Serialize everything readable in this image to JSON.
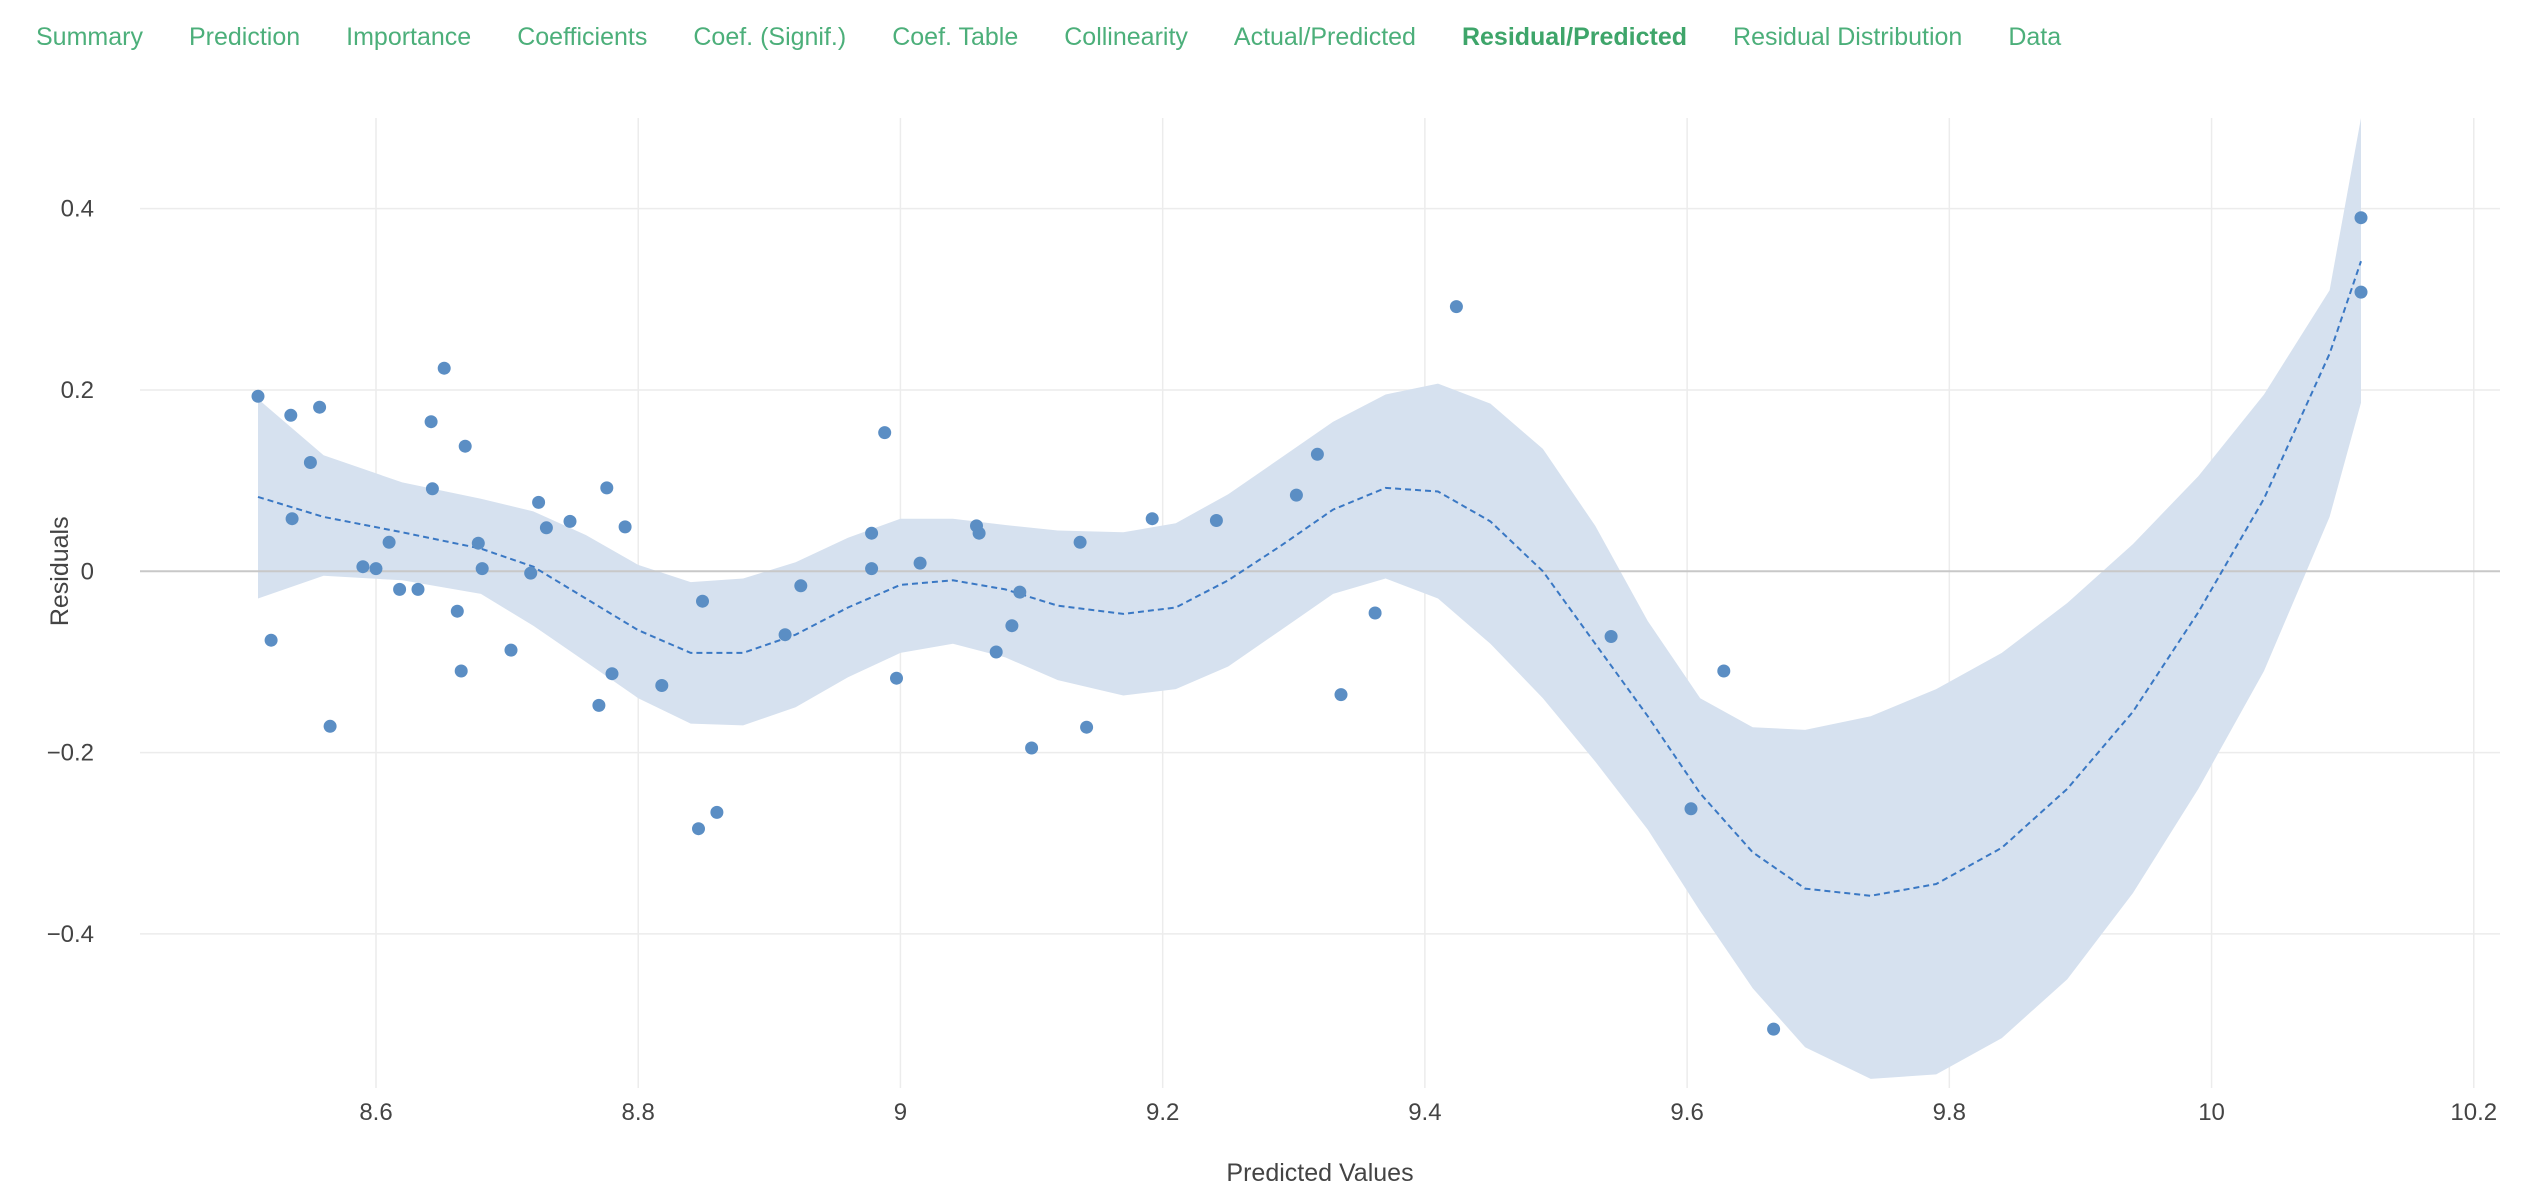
{
  "tabs": [
    {
      "label": "Summary",
      "active": false
    },
    {
      "label": "Prediction",
      "active": false
    },
    {
      "label": "Importance",
      "active": false
    },
    {
      "label": "Coefficients",
      "active": false
    },
    {
      "label": "Coef. (Signif.)",
      "active": false
    },
    {
      "label": "Coef. Table",
      "active": false
    },
    {
      "label": "Collinearity",
      "active": false
    },
    {
      "label": "Actual/Predicted",
      "active": false
    },
    {
      "label": "Residual/Predicted",
      "active": true
    },
    {
      "label": "Residual Distribution",
      "active": false
    },
    {
      "label": "Data",
      "active": false
    }
  ],
  "colors": {
    "tab_text": "#4caf7a",
    "points": "#5b8ec4",
    "band": "#d6e1ef",
    "smooth_line": "#3a78c4",
    "zero_line": "#c8c8c8",
    "grid": "#ececec"
  },
  "chart_data": {
    "type": "scatter",
    "title": "",
    "xlabel": "Predicted Values",
    "ylabel": "Residuals",
    "xlim": [
      8.42,
      10.22
    ],
    "ylim": [
      -0.57,
      0.5
    ],
    "xticks": [
      8.6,
      8.8,
      9,
      9.2,
      9.4,
      9.6,
      9.8,
      10,
      10.2
    ],
    "xtick_labels": [
      "8.6",
      "8.8",
      "9",
      "9.2",
      "9.4",
      "9.6",
      "9.8",
      "10",
      "10.2"
    ],
    "yticks": [
      0.4,
      0.2,
      0,
      -0.2,
      -0.4
    ],
    "ytick_labels": [
      "0.4",
      "0.2",
      "0",
      "−0.2",
      "−0.4"
    ],
    "grid": true,
    "points": [
      [
        8.51,
        0.193
      ],
      [
        8.52,
        -0.076
      ],
      [
        8.535,
        0.172
      ],
      [
        8.536,
        0.058
      ],
      [
        8.55,
        0.12
      ],
      [
        8.557,
        0.181
      ],
      [
        8.565,
        -0.171
      ],
      [
        8.59,
        0.005
      ],
      [
        8.6,
        0.003
      ],
      [
        8.61,
        0.032
      ],
      [
        8.618,
        -0.02
      ],
      [
        8.632,
        -0.02
      ],
      [
        8.642,
        0.165
      ],
      [
        8.643,
        0.091
      ],
      [
        8.652,
        0.224
      ],
      [
        8.662,
        -0.044
      ],
      [
        8.665,
        -0.11
      ],
      [
        8.668,
        0.138
      ],
      [
        8.678,
        0.031
      ],
      [
        8.681,
        0.003
      ],
      [
        8.703,
        -0.087
      ],
      [
        8.718,
        -0.002
      ],
      [
        8.724,
        0.076
      ],
      [
        8.73,
        0.048
      ],
      [
        8.748,
        0.055
      ],
      [
        8.77,
        -0.148
      ],
      [
        8.776,
        0.092
      ],
      [
        8.78,
        -0.113
      ],
      [
        8.79,
        0.049
      ],
      [
        8.818,
        -0.126
      ],
      [
        8.846,
        -0.284
      ],
      [
        8.849,
        -0.033
      ],
      [
        8.86,
        -0.266
      ],
      [
        8.912,
        -0.07
      ],
      [
        8.924,
        -0.016
      ],
      [
        8.978,
        0.042
      ],
      [
        8.978,
        0.003
      ],
      [
        8.988,
        0.153
      ],
      [
        8.997,
        -0.118
      ],
      [
        9.015,
        0.009
      ],
      [
        9.058,
        0.05
      ],
      [
        9.06,
        0.042
      ],
      [
        9.073,
        -0.089
      ],
      [
        9.085,
        -0.06
      ],
      [
        9.091,
        -0.023
      ],
      [
        9.1,
        -0.195
      ],
      [
        9.137,
        0.032
      ],
      [
        9.142,
        -0.172
      ],
      [
        9.192,
        0.058
      ],
      [
        9.241,
        0.056
      ],
      [
        9.302,
        0.084
      ],
      [
        9.318,
        0.129
      ],
      [
        9.336,
        -0.136
      ],
      [
        9.362,
        -0.046
      ],
      [
        9.424,
        0.292
      ],
      [
        9.542,
        -0.072
      ],
      [
        9.603,
        -0.262
      ],
      [
        9.628,
        -0.11
      ],
      [
        9.666,
        -0.505
      ],
      [
        10.114,
        0.39
      ],
      [
        10.114,
        0.308
      ]
    ],
    "smooth": {
      "x": [
        8.51,
        8.56,
        8.62,
        8.68,
        8.72,
        8.76,
        8.8,
        8.84,
        8.88,
        8.92,
        8.96,
        9.0,
        9.04,
        9.08,
        9.12,
        9.17,
        9.21,
        9.25,
        9.29,
        9.33,
        9.37,
        9.41,
        9.45,
        9.49,
        9.53,
        9.57,
        9.61,
        9.65,
        9.69,
        9.74,
        9.79,
        9.84,
        9.89,
        9.94,
        9.99,
        10.04,
        10.09,
        10.114
      ],
      "y": [
        0.082,
        0.06,
        0.043,
        0.025,
        0.005,
        -0.03,
        -0.065,
        -0.09,
        -0.09,
        -0.07,
        -0.04,
        -0.015,
        -0.01,
        -0.02,
        -0.038,
        -0.047,
        -0.04,
        -0.01,
        0.028,
        0.068,
        0.092,
        0.088,
        0.055,
        0.0,
        -0.08,
        -0.16,
        -0.245,
        -0.31,
        -0.35,
        -0.358,
        -0.345,
        -0.305,
        -0.24,
        -0.155,
        -0.045,
        0.08,
        0.24,
        0.342
      ],
      "lower": [
        -0.03,
        -0.005,
        -0.01,
        -0.025,
        -0.06,
        -0.1,
        -0.14,
        -0.168,
        -0.17,
        -0.15,
        -0.117,
        -0.09,
        -0.08,
        -0.095,
        -0.12,
        -0.137,
        -0.13,
        -0.105,
        -0.065,
        -0.025,
        -0.008,
        -0.03,
        -0.08,
        -0.14,
        -0.21,
        -0.285,
        -0.375,
        -0.46,
        -0.525,
        -0.56,
        -0.555,
        -0.515,
        -0.45,
        -0.355,
        -0.24,
        -0.11,
        0.06,
        0.186
      ],
      "upper": [
        0.19,
        0.128,
        0.098,
        0.08,
        0.066,
        0.04,
        0.007,
        -0.012,
        -0.008,
        0.01,
        0.037,
        0.058,
        0.058,
        0.051,
        0.045,
        0.043,
        0.053,
        0.085,
        0.125,
        0.165,
        0.195,
        0.207,
        0.185,
        0.135,
        0.05,
        -0.055,
        -0.14,
        -0.172,
        -0.175,
        -0.16,
        -0.13,
        -0.09,
        -0.035,
        0.03,
        0.105,
        0.195,
        0.31,
        0.5
      ]
    }
  }
}
